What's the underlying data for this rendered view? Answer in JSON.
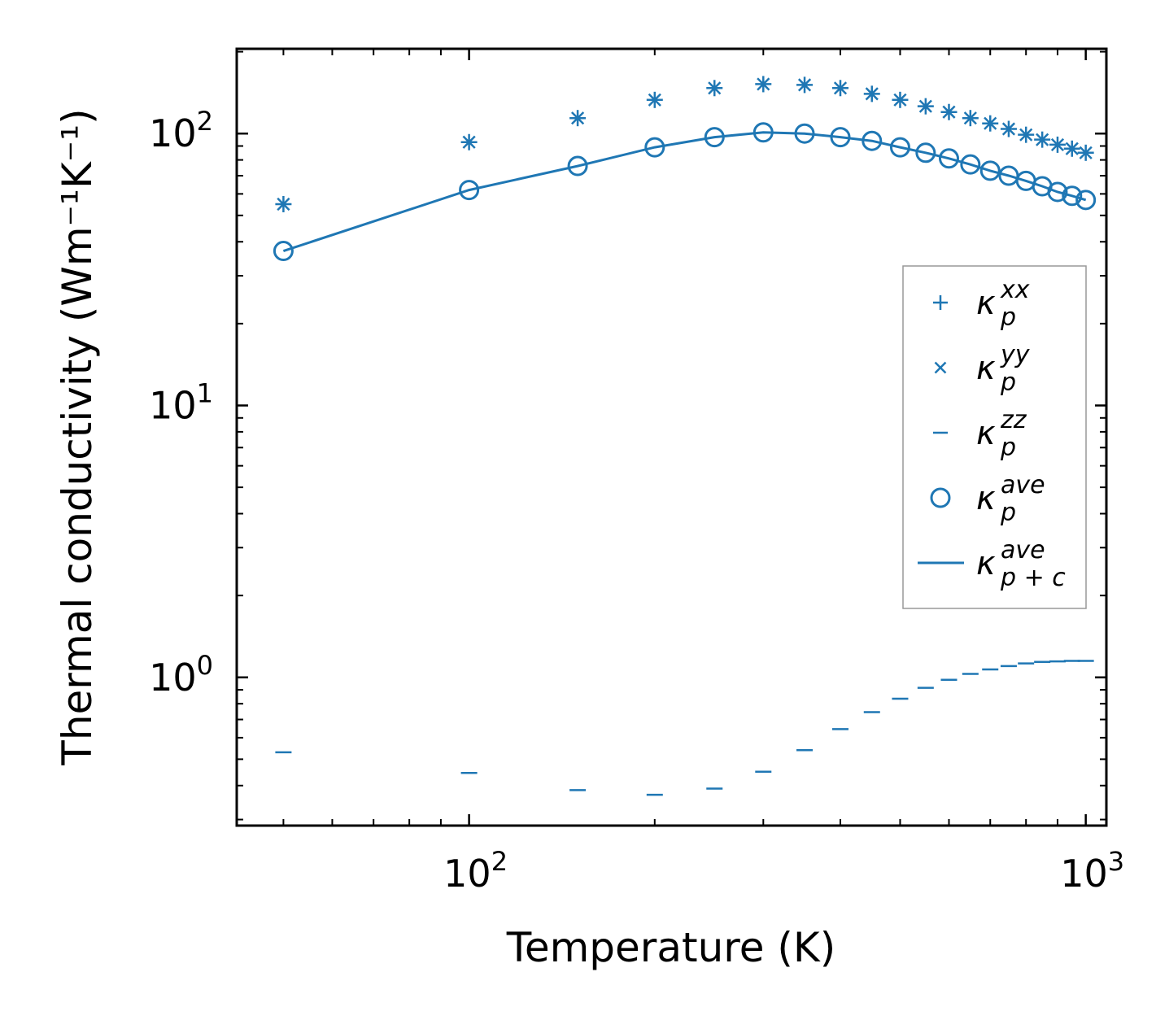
{
  "chart_data": {
    "type": "scatter",
    "title": "",
    "xlabel": "Temperature (K)",
    "ylabel": "Thermal conductivity (Wm⁻¹K⁻¹)",
    "xscale": "log",
    "yscale": "log",
    "xlim": [
      42,
      1080
    ],
    "ylim": [
      0.285,
      205
    ],
    "x_ticks": [
      {
        "base": "10",
        "exp": "2",
        "value": 100
      },
      {
        "base": "10",
        "exp": "3",
        "value": 1000
      }
    ],
    "y_ticks": [
      {
        "base": "10",
        "exp": "0",
        "value": 1
      },
      {
        "base": "10",
        "exp": "1",
        "value": 10
      },
      {
        "base": "10",
        "exp": "2",
        "value": 100
      }
    ],
    "legend_position": "center-right",
    "color": "#1f77b4",
    "x": [
      50,
      100,
      150,
      200,
      250,
      300,
      350,
      400,
      450,
      500,
      550,
      600,
      650,
      700,
      750,
      800,
      850,
      900,
      950,
      1000
    ],
    "series": [
      {
        "name": "kappa_p^xx",
        "marker": "plus",
        "values": [
          55,
          93,
          114,
          133,
          147,
          152,
          151,
          147,
          140,
          133,
          126,
          120,
          114,
          109,
          104,
          99,
          95,
          91,
          88,
          85
        ]
      },
      {
        "name": "kappa_p^yy",
        "marker": "x",
        "values": [
          55,
          93,
          114,
          133,
          147,
          152,
          151,
          147,
          140,
          133,
          126,
          120,
          114,
          109,
          104,
          99,
          95,
          91,
          88,
          85
        ]
      },
      {
        "name": "kappa_p^zz",
        "marker": "hline",
        "values": [
          0.53,
          0.445,
          0.385,
          0.37,
          0.39,
          0.45,
          0.54,
          0.645,
          0.745,
          0.835,
          0.915,
          0.98,
          1.03,
          1.07,
          1.1,
          1.125,
          1.14,
          1.145,
          1.15,
          1.15
        ]
      },
      {
        "name": "kappa_p^ave",
        "marker": "circle",
        "values": [
          37,
          62,
          76,
          89,
          97,
          101,
          100,
          97,
          94,
          89,
          85,
          81,
          77,
          73,
          70,
          67,
          64,
          61,
          59,
          57
        ]
      },
      {
        "name": "kappa_p+c^ave",
        "marker": "line",
        "values": [
          37,
          62,
          76,
          89,
          97,
          101,
          100,
          97,
          94,
          89,
          85,
          81,
          77,
          73,
          70,
          67,
          64,
          61,
          59,
          57
        ]
      }
    ],
    "legend": [
      {
        "symbol": "κ",
        "sub": "p",
        "sup": "xx",
        "marker": "plus"
      },
      {
        "symbol": "κ",
        "sub": "p",
        "sup": "yy",
        "marker": "x"
      },
      {
        "symbol": "κ",
        "sub": "p",
        "sup": "zz",
        "marker": "hline"
      },
      {
        "symbol": "κ",
        "sub": "p",
        "sup": "ave",
        "marker": "circle"
      },
      {
        "symbol": "κ",
        "sub": "p + c",
        "sup": "ave",
        "marker": "line"
      }
    ]
  }
}
